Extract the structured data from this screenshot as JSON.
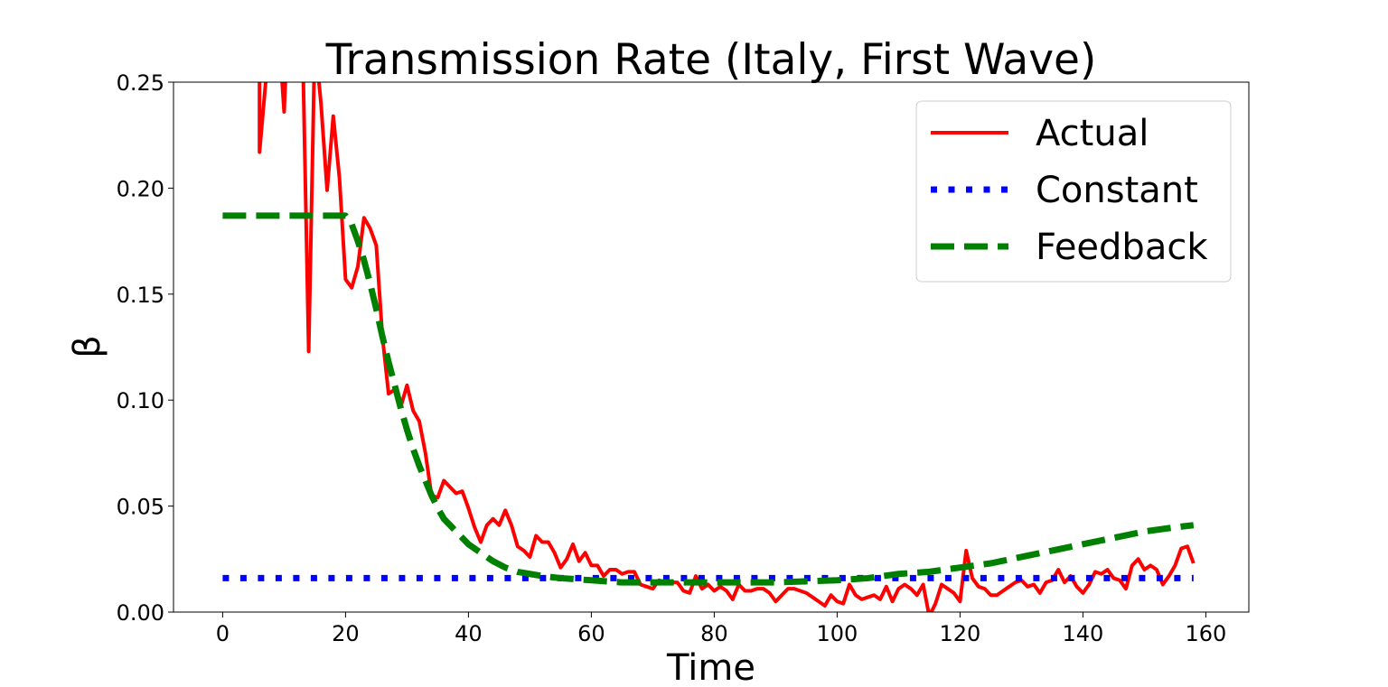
{
  "chart_data": {
    "type": "line",
    "title": "Transmission Rate (Italy, First Wave)",
    "xlabel": "Time",
    "ylabel": "β",
    "xlim": [
      -8,
      167
    ],
    "ylim": [
      0,
      0.25
    ],
    "xticks": [
      0,
      20,
      40,
      60,
      80,
      100,
      120,
      140,
      160
    ],
    "yticks": [
      0.0,
      0.05,
      0.1,
      0.15,
      0.2,
      0.25
    ],
    "xtick_labels": [
      "0",
      "20",
      "40",
      "60",
      "80",
      "100",
      "120",
      "140",
      "160"
    ],
    "ytick_labels": [
      "0.00",
      "0.05",
      "0.10",
      "0.15",
      "0.20",
      "0.25"
    ],
    "grid": false,
    "legend_position": "top-right",
    "series": [
      {
        "name": "Actual",
        "color": "#ff0000",
        "style": "solid",
        "points": [
          [
            6,
            0.28
          ],
          [
            6,
            0.217
          ],
          [
            7,
            0.25
          ],
          [
            7.5,
            0.27
          ],
          [
            9,
            0.28
          ],
          [
            10,
            0.236
          ],
          [
            10.5,
            0.27
          ],
          [
            12,
            0.28
          ],
          [
            13,
            0.27
          ],
          [
            14,
            0.123
          ],
          [
            15,
            0.27
          ],
          [
            16,
            0.24
          ],
          [
            17,
            0.199
          ],
          [
            18,
            0.234
          ],
          [
            19,
            0.205
          ],
          [
            20,
            0.157
          ],
          [
            21,
            0.153
          ],
          [
            22,
            0.163
          ],
          [
            23,
            0.186
          ],
          [
            24,
            0.181
          ],
          [
            25,
            0.173
          ],
          [
            26,
            0.13
          ],
          [
            27,
            0.103
          ],
          [
            28,
            0.105
          ],
          [
            29,
            0.097
          ],
          [
            30,
            0.107
          ],
          [
            31,
            0.095
          ],
          [
            32,
            0.09
          ],
          [
            33,
            0.075
          ],
          [
            34,
            0.055
          ],
          [
            35,
            0.054
          ],
          [
            36,
            0.062
          ],
          [
            37,
            0.059
          ],
          [
            38,
            0.056
          ],
          [
            39,
            0.057
          ],
          [
            40,
            0.049
          ],
          [
            41,
            0.04
          ],
          [
            42,
            0.033
          ],
          [
            43,
            0.041
          ],
          [
            44,
            0.044
          ],
          [
            45,
            0.041
          ],
          [
            46,
            0.048
          ],
          [
            47,
            0.041
          ],
          [
            48,
            0.031
          ],
          [
            49,
            0.029
          ],
          [
            50,
            0.026
          ],
          [
            51,
            0.036
          ],
          [
            52,
            0.033
          ],
          [
            53,
            0.033
          ],
          [
            54,
            0.028
          ],
          [
            55,
            0.021
          ],
          [
            56,
            0.025
          ],
          [
            57,
            0.032
          ],
          [
            58,
            0.024
          ],
          [
            59,
            0.028
          ],
          [
            60,
            0.022
          ],
          [
            61,
            0.022
          ],
          [
            62,
            0.017
          ],
          [
            63,
            0.02
          ],
          [
            64,
            0.02
          ],
          [
            65,
            0.018
          ],
          [
            66,
            0.019
          ],
          [
            67,
            0.019
          ],
          [
            68,
            0.013
          ],
          [
            69,
            0.012
          ],
          [
            70,
            0.011
          ],
          [
            71,
            0.015
          ],
          [
            72,
            0.014
          ],
          [
            73,
            0.014
          ],
          [
            74,
            0.014
          ],
          [
            75,
            0.01
          ],
          [
            76,
            0.009
          ],
          [
            77,
            0.017
          ],
          [
            78,
            0.011
          ],
          [
            79,
            0.013
          ],
          [
            80,
            0.01
          ],
          [
            81,
            0.012
          ],
          [
            82,
            0.01
          ],
          [
            83,
            0.006
          ],
          [
            84,
            0.013
          ],
          [
            85,
            0.01
          ],
          [
            86,
            0.01
          ],
          [
            87,
            0.011
          ],
          [
            88,
            0.011
          ],
          [
            89,
            0.009
          ],
          [
            90,
            0.005
          ],
          [
            91,
            0.008
          ],
          [
            92,
            0.011
          ],
          [
            93,
            0.011
          ],
          [
            94,
            0.01
          ],
          [
            95,
            0.009
          ],
          [
            96,
            0.007
          ],
          [
            97,
            0.005
          ],
          [
            98,
            0.003
          ],
          [
            99,
            0.008
          ],
          [
            100,
            0.005
          ],
          [
            101,
            0.004
          ],
          [
            102,
            0.013
          ],
          [
            103,
            0.008
          ],
          [
            104,
            0.006
          ],
          [
            105,
            0.007
          ],
          [
            106,
            0.008
          ],
          [
            107,
            0.006
          ],
          [
            108,
            0.012
          ],
          [
            109,
            0.005
          ],
          [
            110,
            0.011
          ],
          [
            111,
            0.013
          ],
          [
            112,
            0.011
          ],
          [
            113,
            0.008
          ],
          [
            114,
            0.013
          ],
          [
            115,
            -0.002
          ],
          [
            116,
            0.004
          ],
          [
            117,
            0.013
          ],
          [
            118,
            0.011
          ],
          [
            119,
            0.009
          ],
          [
            120,
            0.005
          ],
          [
            121,
            0.029
          ],
          [
            122,
            0.016
          ],
          [
            123,
            0.012
          ],
          [
            124,
            0.011
          ],
          [
            125,
            0.008
          ],
          [
            126,
            0.008
          ],
          [
            127,
            0.01
          ],
          [
            128,
            0.012
          ],
          [
            129,
            0.014
          ],
          [
            130,
            0.015
          ],
          [
            131,
            0.012
          ],
          [
            132,
            0.013
          ],
          [
            133,
            0.009
          ],
          [
            134,
            0.014
          ],
          [
            135,
            0.015
          ],
          [
            136,
            0.02
          ],
          [
            137,
            0.014
          ],
          [
            138,
            0.017
          ],
          [
            139,
            0.012
          ],
          [
            140,
            0.009
          ],
          [
            141,
            0.013
          ],
          [
            142,
            0.019
          ],
          [
            143,
            0.018
          ],
          [
            144,
            0.02
          ],
          [
            145,
            0.016
          ],
          [
            146,
            0.015
          ],
          [
            147,
            0.011
          ],
          [
            148,
            0.022
          ],
          [
            149,
            0.025
          ],
          [
            150,
            0.02
          ],
          [
            151,
            0.022
          ],
          [
            152,
            0.02
          ],
          [
            153,
            0.013
          ],
          [
            154,
            0.017
          ],
          [
            155,
            0.022
          ],
          [
            156,
            0.03
          ],
          [
            157,
            0.031
          ],
          [
            158,
            0.023
          ]
        ]
      },
      {
        "name": "Constant",
        "color": "#0000ff",
        "style": "dotted",
        "points": [
          [
            0,
            0.016
          ],
          [
            158,
            0.016
          ]
        ]
      },
      {
        "name": "Feedback",
        "color": "#008000",
        "style": "dashed",
        "points": [
          [
            0,
            0.187
          ],
          [
            20,
            0.187
          ],
          [
            21,
            0.183
          ],
          [
            22,
            0.175
          ],
          [
            23,
            0.166
          ],
          [
            24,
            0.155
          ],
          [
            25,
            0.143
          ],
          [
            26,
            0.13
          ],
          [
            27,
            0.118
          ],
          [
            28,
            0.107
          ],
          [
            29,
            0.096
          ],
          [
            30,
            0.086
          ],
          [
            31,
            0.077
          ],
          [
            32,
            0.069
          ],
          [
            33,
            0.062
          ],
          [
            34,
            0.055
          ],
          [
            35,
            0.049
          ],
          [
            36,
            0.044
          ],
          [
            38,
            0.038
          ],
          [
            40,
            0.032
          ],
          [
            42,
            0.028
          ],
          [
            44,
            0.024
          ],
          [
            46,
            0.021
          ],
          [
            48,
            0.019
          ],
          [
            50,
            0.018
          ],
          [
            52,
            0.017
          ],
          [
            55,
            0.016
          ],
          [
            60,
            0.015
          ],
          [
            65,
            0.014
          ],
          [
            70,
            0.014
          ],
          [
            80,
            0.014
          ],
          [
            90,
            0.014
          ],
          [
            100,
            0.015
          ],
          [
            105,
            0.016
          ],
          [
            110,
            0.018
          ],
          [
            115,
            0.019
          ],
          [
            120,
            0.021
          ],
          [
            125,
            0.023
          ],
          [
            130,
            0.026
          ],
          [
            135,
            0.029
          ],
          [
            140,
            0.032
          ],
          [
            145,
            0.035
          ],
          [
            150,
            0.038
          ],
          [
            155,
            0.04
          ],
          [
            158,
            0.041
          ]
        ]
      }
    ]
  }
}
